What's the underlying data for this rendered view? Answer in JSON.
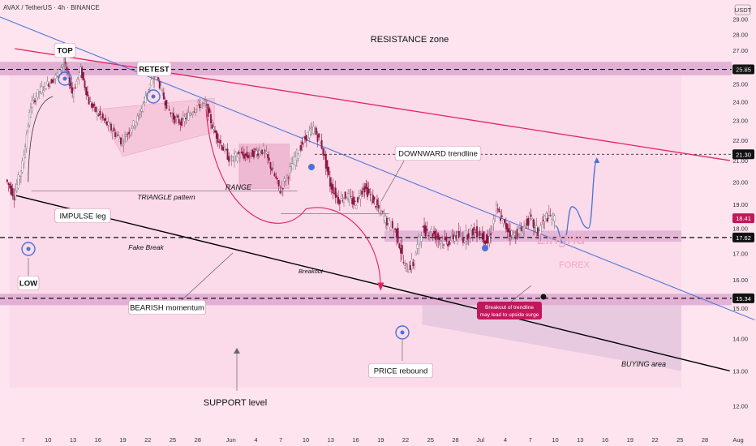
{
  "header": {
    "symbol": "AVAX / TetherUS · 4h · BINANCE",
    "currency": "USDT"
  },
  "colors": {
    "bg": "#fde4ef",
    "up": "#ffffff",
    "down": "#8b1540",
    "resistance_line": "#e0245e",
    "downtrend_line": "#4a73d6",
    "support_line": "#000000",
    "zone_fill": "#d9a2cd",
    "callout_bg": "#ffffff",
    "price_badge": "#c2185b",
    "blue_marker": "#4a73d6"
  },
  "chart_data": {
    "type": "candlestick",
    "title": "AVAX / TetherUS · 4h · BINANCE",
    "ylabel": "USDT",
    "y_scale": "log",
    "ylim": [
      11.2,
      30.0
    ],
    "y_ticks": [
      12.0,
      13.0,
      14.0,
      15.0,
      16.0,
      17.0,
      18.0,
      19.0,
      20.0,
      21.0,
      22.0,
      23.0,
      24.0,
      25.0,
      26.0,
      27.0,
      28.0,
      29.0
    ],
    "x_ticks": [
      "7",
      "10",
      "13",
      "16",
      "19",
      "22",
      "25",
      "28",
      "Jun",
      "4",
      "7",
      "10",
      "13",
      "16",
      "19",
      "22",
      "25",
      "28",
      "Jul",
      "4",
      "7",
      "10",
      "13",
      "16",
      "19",
      "22",
      "25",
      "28",
      "Aug"
    ],
    "price_path": [
      {
        "date": "May 5",
        "close": 20.1
      },
      {
        "date": "May 6",
        "close": 19.4
      },
      {
        "date": "May 7",
        "close": 20.8
      },
      {
        "date": "May 8",
        "close": 23.8
      },
      {
        "date": "May 9",
        "close": 24.6
      },
      {
        "date": "May 10",
        "close": 25.0
      },
      {
        "date": "May 11",
        "close": 25.4
      },
      {
        "date": "May 12",
        "close": 26.3
      },
      {
        "date": "May 13",
        "close": 24.5
      },
      {
        "date": "May 14",
        "close": 25.8
      },
      {
        "date": "May 15",
        "close": 24.0
      },
      {
        "date": "May 16",
        "close": 23.4
      },
      {
        "date": "May 17",
        "close": 22.9
      },
      {
        "date": "May 18",
        "close": 22.4
      },
      {
        "date": "May 19",
        "close": 21.9
      },
      {
        "date": "May 20",
        "close": 22.6
      },
      {
        "date": "May 21",
        "close": 23.2
      },
      {
        "date": "May 22",
        "close": 24.6
      },
      {
        "date": "May 23",
        "close": 25.7
      },
      {
        "date": "May 24",
        "close": 24.2
      },
      {
        "date": "May 25",
        "close": 23.2
      },
      {
        "date": "May 26",
        "close": 22.9
      },
      {
        "date": "May 27",
        "close": 23.3
      },
      {
        "date": "May 28",
        "close": 23.8
      },
      {
        "date": "May 29",
        "close": 23.9
      },
      {
        "date": "May 30",
        "close": 22.5
      },
      {
        "date": "May 31",
        "close": 21.7
      },
      {
        "date": "Jun 1",
        "close": 21.0
      },
      {
        "date": "Jun 2",
        "close": 21.3
      },
      {
        "date": "Jun 3",
        "close": 21.2
      },
      {
        "date": "Jun 4",
        "close": 21.4
      },
      {
        "date": "Jun 5",
        "close": 21.5
      },
      {
        "date": "Jun 6",
        "close": 20.6
      },
      {
        "date": "Jun 7",
        "close": 19.6
      },
      {
        "date": "Jun 8",
        "close": 20.4
      },
      {
        "date": "Jun 9",
        "close": 21.3
      },
      {
        "date": "Jun 10",
        "close": 22.1
      },
      {
        "date": "Jun 11",
        "close": 22.6
      },
      {
        "date": "Jun 12",
        "close": 21.7
      },
      {
        "date": "Jun 13",
        "close": 19.9
      },
      {
        "date": "Jun 14",
        "close": 19.2
      },
      {
        "date": "Jun 15",
        "close": 19.4
      },
      {
        "date": "Jun 16",
        "close": 19.0
      },
      {
        "date": "Jun 17",
        "close": 19.8
      },
      {
        "date": "Jun 18",
        "close": 19.3
      },
      {
        "date": "Jun 19",
        "close": 18.7
      },
      {
        "date": "Jun 20",
        "close": 18.2
      },
      {
        "date": "Jun 21",
        "close": 17.8
      },
      {
        "date": "Jun 22",
        "close": 16.4
      },
      {
        "date": "Jun 23",
        "close": 16.6
      },
      {
        "date": "Jun 24",
        "close": 17.9
      },
      {
        "date": "Jun 25",
        "close": 17.9
      },
      {
        "date": "Jun 26",
        "close": 17.6
      },
      {
        "date": "Jun 27",
        "close": 17.4
      },
      {
        "date": "Jun 28",
        "close": 17.7
      },
      {
        "date": "Jun 29",
        "close": 17.6
      },
      {
        "date": "Jun 30",
        "close": 17.9
      },
      {
        "date": "Jul 1",
        "close": 17.8
      },
      {
        "date": "Jul 2",
        "close": 17.4
      },
      {
        "date": "Jul 3",
        "close": 18.8
      },
      {
        "date": "Jul 4",
        "close": 18.1
      },
      {
        "date": "Jul 5",
        "close": 17.7
      },
      {
        "date": "Jul 6",
        "close": 17.9
      },
      {
        "date": "Jul 7",
        "close": 18.4
      },
      {
        "date": "Jul 8",
        "close": 17.8
      },
      {
        "date": "Jul 9",
        "close": 18.5
      },
      {
        "date": "Jul 10",
        "close": 18.4
      }
    ],
    "horizontal_levels": [
      {
        "value": 25.85,
        "label": "25.85"
      },
      {
        "value": 21.3,
        "label": "21.30"
      },
      {
        "value": 17.62,
        "label": "17.62"
      },
      {
        "value": 15.34,
        "label": "15.34"
      }
    ],
    "current_price": {
      "value": 18.41,
      "label": "18.41"
    },
    "trendlines": [
      {
        "name": "DOWNWARD trendline",
        "from": {
          "date": "May 6",
          "price": 27.1
        },
        "to": {
          "date": "Jul 31",
          "price": 21.0
        }
      },
      {
        "name": "blue",
        "from": {
          "date": "May 3",
          "price": 29.4
        },
        "to": {
          "date": "Aug 3",
          "price": 14.6
        }
      },
      {
        "name": "support",
        "from": {
          "date": "May 6",
          "price": 19.4
        },
        "to": {
          "date": "Jul 31",
          "price": 13.0
        }
      }
    ],
    "projection": [
      {
        "date": "Jul 10",
        "price": 18.1
      },
      {
        "date": "Jul 11",
        "price": 17.4
      },
      {
        "date": "Jul 12",
        "price": 18.9
      },
      {
        "date": "Jul 14",
        "price": 18.0
      },
      {
        "date": "Jul 15",
        "price": 21.0
      }
    ],
    "annotations": {
      "resistance_zone": "RESISTANCE zone",
      "top": "TOP",
      "retest": "RETEST",
      "downward_trendline": "DOWNWARD trendline",
      "impulse_leg": "IMPULSE leg",
      "triangle": "TRIANGLE pattern",
      "range": "RANGE",
      "fake_break": "Fake Break",
      "breakout": "Breakout",
      "low": "LOW",
      "bearish_momentum": "BEARISH momentum",
      "breakout_note_line1": "Breakout of trendline",
      "breakout_note_line2": "may lead to upside surge",
      "price_rebound": "PRICE rebound",
      "buying_area": "BUYING area",
      "support_level": "SUPPORT level",
      "watermark_main": "Lingrid",
      "watermark_sub": "FOREX"
    }
  }
}
